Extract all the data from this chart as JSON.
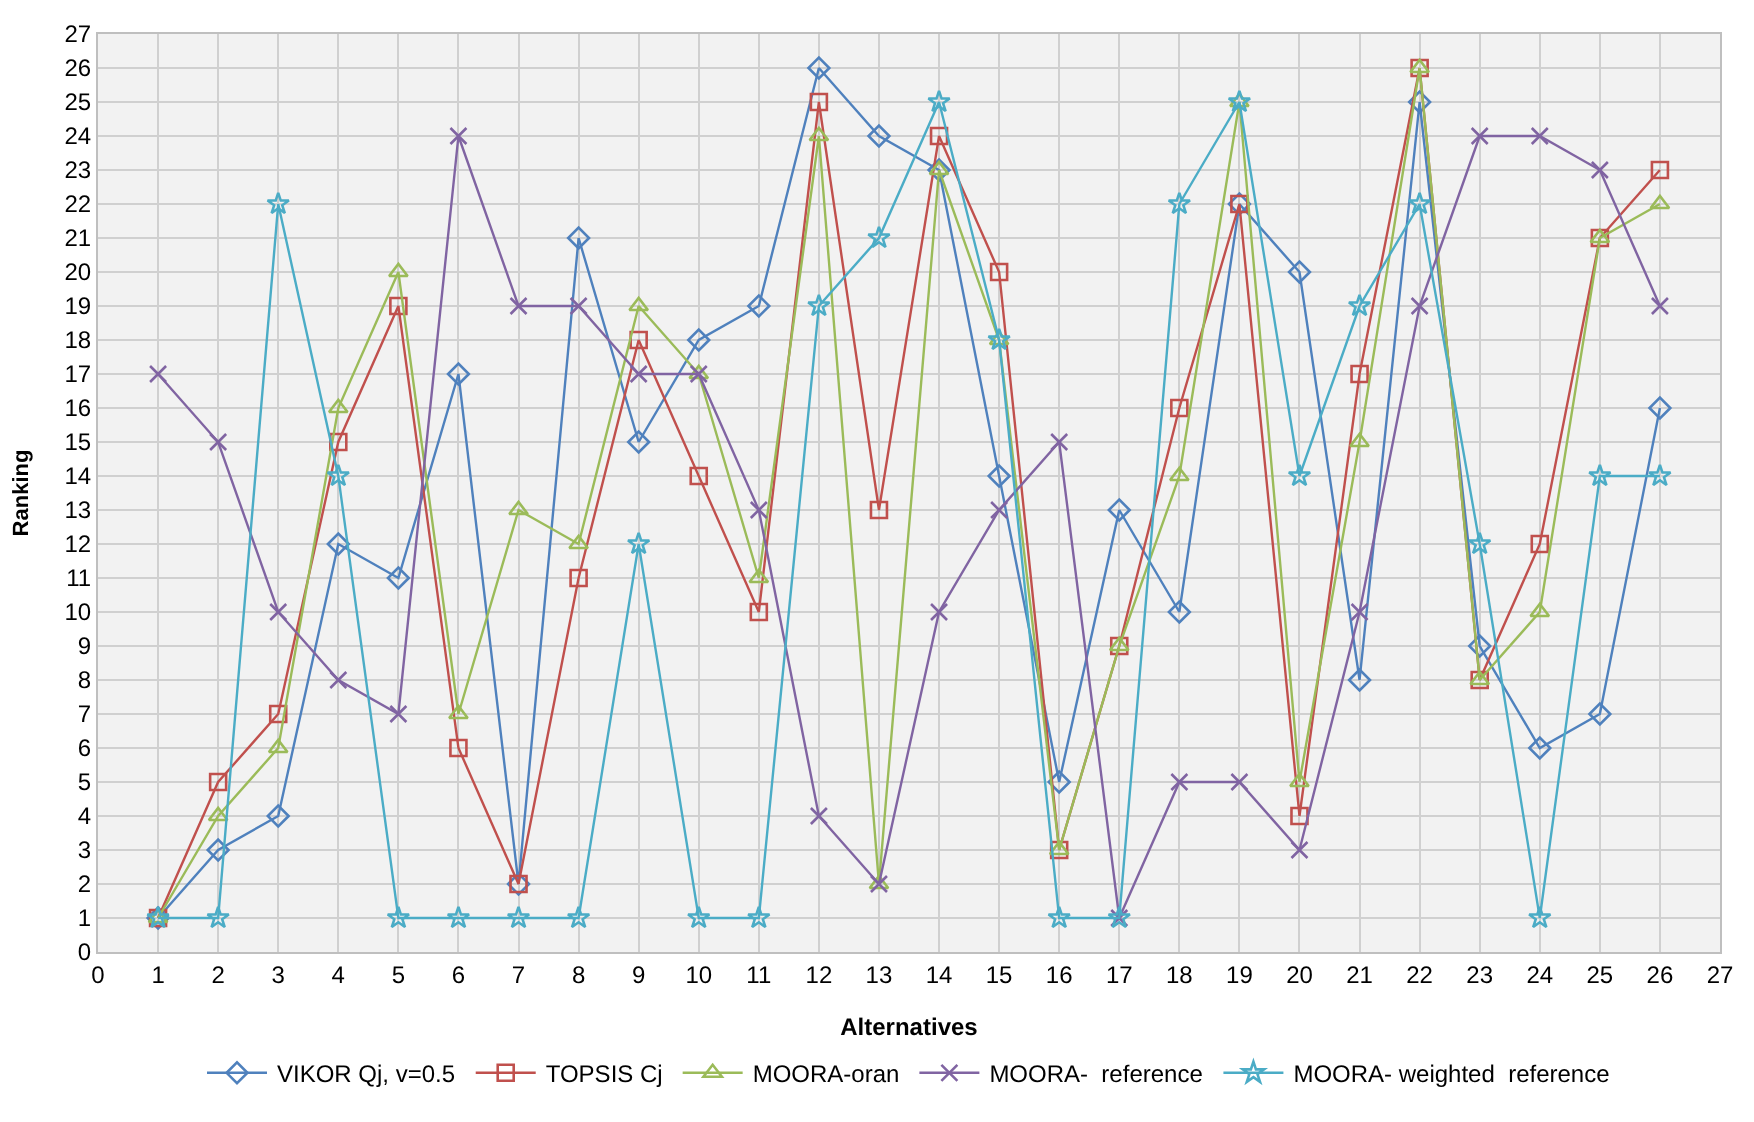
{
  "chart_data": {
    "type": "line",
    "xlabel": "Alternatives",
    "ylabel": "Ranking",
    "x": [
      1,
      2,
      3,
      4,
      5,
      6,
      7,
      8,
      9,
      10,
      11,
      12,
      13,
      14,
      15,
      16,
      17,
      18,
      19,
      20,
      21,
      22,
      23,
      24,
      25,
      26
    ],
    "xlim": [
      0,
      27
    ],
    "xticks": [
      0,
      1,
      2,
      3,
      4,
      5,
      6,
      7,
      8,
      9,
      10,
      11,
      12,
      13,
      14,
      15,
      16,
      17,
      18,
      19,
      20,
      21,
      22,
      23,
      24,
      25,
      26,
      27
    ],
    "ylim": [
      0,
      27
    ],
    "yticks": [
      0,
      1,
      2,
      3,
      4,
      5,
      6,
      7,
      8,
      9,
      10,
      11,
      12,
      13,
      14,
      15,
      16,
      17,
      18,
      19,
      20,
      21,
      22,
      23,
      24,
      25,
      26,
      27
    ],
    "grid": true,
    "legend": "bottom",
    "series": [
      {
        "name": "VIKOR Qj, v=0.5",
        "color": "#4f81bd",
        "marker": "diamond",
        "values": [
          1,
          3,
          4,
          12,
          11,
          17,
          2,
          21,
          15,
          18,
          19,
          26,
          24,
          23,
          14,
          5,
          13,
          10,
          22,
          20,
          8,
          25,
          9,
          6,
          7,
          16
        ]
      },
      {
        "name": "TOPSIS Cj",
        "color": "#c0504d",
        "marker": "square",
        "values": [
          1,
          5,
          7,
          15,
          19,
          6,
          2,
          11,
          18,
          14,
          10,
          25,
          13,
          24,
          20,
          3,
          9,
          16,
          22,
          4,
          17,
          26,
          8,
          12,
          21,
          23
        ]
      },
      {
        "name": "MOORA-oran",
        "color": "#9bbb59",
        "marker": "triangle",
        "values": [
          1,
          4,
          6,
          16,
          20,
          7,
          13,
          12,
          19,
          17,
          11,
          24,
          2,
          23,
          18,
          3,
          9,
          14,
          25,
          5,
          15,
          26,
          8,
          10,
          21,
          22
        ]
      },
      {
        "name": "MOORA-  reference",
        "color": "#8064a2",
        "marker": "cross",
        "values": [
          17,
          15,
          10,
          8,
          7,
          24,
          19,
          19,
          17,
          17,
          13,
          4,
          2,
          10,
          13,
          15,
          1,
          5,
          5,
          3,
          10,
          19,
          24,
          24,
          23,
          19
        ]
      },
      {
        "name": "MOORA- weighted  reference",
        "color": "#4bacc6",
        "marker": "star",
        "values": [
          1,
          1,
          22,
          14,
          1,
          1,
          1,
          1,
          12,
          1,
          1,
          19,
          21,
          25,
          18,
          1,
          1,
          22,
          25,
          14,
          19,
          22,
          12,
          1,
          14,
          14
        ]
      }
    ]
  }
}
